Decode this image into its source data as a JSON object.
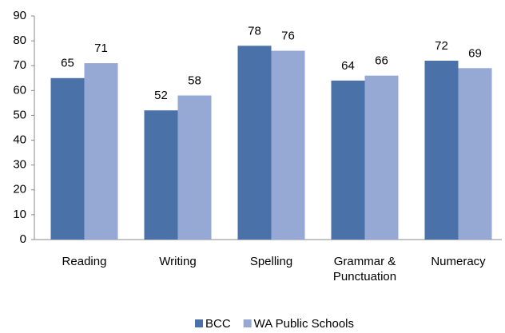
{
  "chart_data": {
    "type": "bar",
    "categories": [
      "Reading",
      "Writing",
      "Spelling",
      "Grammar & Punctuation",
      "Numeracy"
    ],
    "series": [
      {
        "name": "BCC",
        "color": "#4a72a8",
        "values": [
          65,
          52,
          78,
          64,
          72
        ]
      },
      {
        "name": "WA Public Schools",
        "color": "#95a9d4",
        "values": [
          71,
          58,
          76,
          66,
          69
        ]
      }
    ],
    "ylim": [
      0,
      90
    ],
    "yticks": [
      0,
      10,
      20,
      30,
      40,
      50,
      60,
      70,
      80,
      90
    ],
    "grid": false,
    "legend": "bottom"
  }
}
